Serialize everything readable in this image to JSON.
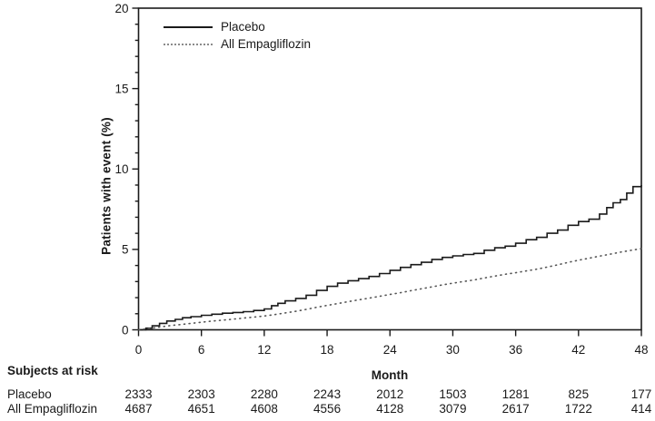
{
  "colors": {
    "axis": "#1a1a1a",
    "solid_line": "#1a1a1a",
    "dotted_line": "#555555",
    "text": "#1a1a1a"
  },
  "chart_data": {
    "type": "line",
    "title": "",
    "xlabel": "Month",
    "ylabel": "Patients with event (%)",
    "xlim": [
      0,
      48
    ],
    "ylim": [
      0,
      20
    ],
    "x_ticks": [
      0,
      6,
      12,
      18,
      24,
      30,
      36,
      42,
      48
    ],
    "y_ticks": [
      0,
      5,
      10,
      15,
      20
    ],
    "y_minor_step": 1,
    "grid": false,
    "legend_position": "top-left-inside",
    "series": [
      {
        "name": "Placebo",
        "style": "solid",
        "step": true,
        "x": [
          0,
          0.7,
          1.3,
          2,
          2.7,
          3.5,
          4.2,
          5,
          6,
          7,
          8,
          9,
          10,
          11,
          12,
          12.7,
          13.3,
          14,
          15,
          16,
          17,
          18,
          19,
          20,
          21,
          22,
          23,
          24,
          25,
          26,
          27,
          28,
          29,
          30,
          31,
          32,
          33,
          34,
          35,
          36,
          37,
          38,
          39,
          40,
          41,
          42,
          43,
          44,
          44.7,
          45.3,
          46,
          46.6,
          47.2,
          48
        ],
        "y": [
          0,
          0.1,
          0.25,
          0.4,
          0.55,
          0.65,
          0.75,
          0.82,
          0.9,
          0.97,
          1.03,
          1.08,
          1.13,
          1.2,
          1.3,
          1.5,
          1.65,
          1.8,
          1.95,
          2.15,
          2.45,
          2.7,
          2.9,
          3.05,
          3.18,
          3.32,
          3.5,
          3.7,
          3.88,
          4.05,
          4.2,
          4.38,
          4.5,
          4.6,
          4.68,
          4.75,
          4.95,
          5.1,
          5.2,
          5.38,
          5.6,
          5.75,
          6.0,
          6.2,
          6.5,
          6.73,
          6.88,
          7.2,
          7.6,
          7.9,
          8.1,
          8.5,
          8.9,
          9.0
        ]
      },
      {
        "name": "All Empagliflozin",
        "style": "dotted",
        "step": false,
        "x": [
          0,
          1,
          2,
          3,
          4,
          5,
          6,
          7,
          8,
          9,
          10,
          11,
          12,
          13,
          14,
          15,
          16,
          17,
          18,
          19,
          20,
          21,
          22,
          23,
          24,
          25,
          26,
          27,
          28,
          29,
          30,
          31,
          32,
          33,
          34,
          35,
          36,
          37,
          38,
          39,
          40,
          41,
          42,
          43,
          44,
          45,
          46,
          47,
          48
        ],
        "y": [
          0,
          0.08,
          0.17,
          0.26,
          0.33,
          0.4,
          0.47,
          0.54,
          0.6,
          0.66,
          0.73,
          0.79,
          0.86,
          0.95,
          1.05,
          1.15,
          1.27,
          1.4,
          1.52,
          1.63,
          1.75,
          1.86,
          1.97,
          2.08,
          2.2,
          2.31,
          2.43,
          2.55,
          2.67,
          2.79,
          2.9,
          3.0,
          3.1,
          3.22,
          3.34,
          3.45,
          3.55,
          3.66,
          3.77,
          3.9,
          4.04,
          4.19,
          4.33,
          4.45,
          4.58,
          4.7,
          4.83,
          4.94,
          5.05
        ]
      }
    ]
  },
  "risk_table": {
    "title": "Subjects at risk",
    "months": [
      0,
      6,
      12,
      18,
      24,
      30,
      36,
      42,
      48
    ],
    "rows": [
      {
        "label": "Placebo",
        "counts": [
          "2333",
          "2303",
          "2280",
          "2243",
          "2012",
          "1503",
          "1281",
          "825",
          "177"
        ]
      },
      {
        "label": "All Empagliflozin",
        "counts": [
          "4687",
          "4651",
          "4608",
          "4556",
          "4128",
          "3079",
          "2617",
          "1722",
          "414"
        ]
      }
    ]
  }
}
